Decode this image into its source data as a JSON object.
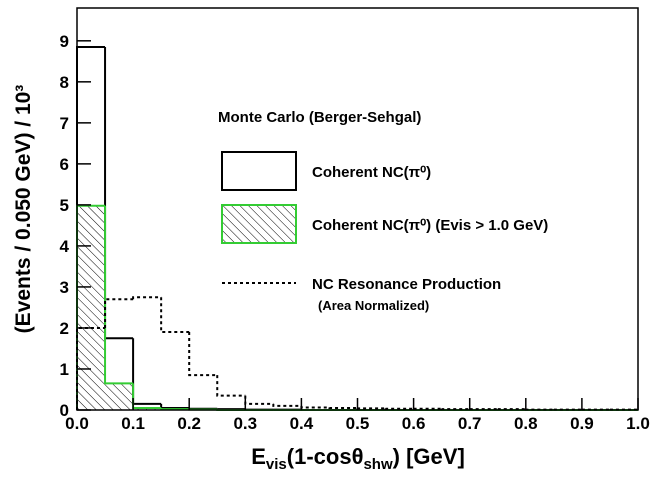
{
  "chart_data": {
    "type": "histogram",
    "ylabel": "(Events / 0.050 GeV) / 10³",
    "xlabel": [
      "E",
      "vis",
      "(1-cosθ",
      "shw",
      ") [GeV]"
    ],
    "header": "Monte Carlo (Berger-Sehgal)",
    "annotation": "(Area Normalized)",
    "bins": [
      0,
      0.05,
      0.1,
      0.15,
      0.2,
      0.25,
      0.3,
      0.35,
      0.4,
      0.45,
      0.5,
      0.55,
      0.6,
      0.65,
      0.7,
      0.75,
      0.8,
      0.85,
      0.9,
      0.95,
      1.0
    ],
    "series": [
      {
        "name": "Coherent NC(π⁰)",
        "color": "#000000",
        "style": "solid",
        "values": [
          8.85,
          1.75,
          0.15,
          0.05,
          0.03,
          0.02,
          0.01,
          0.01,
          0,
          0,
          0,
          0,
          0,
          0,
          0,
          0,
          0,
          0,
          0,
          0
        ]
      },
      {
        "name": "Coherent NC(π⁰) (Evis > 1.0 GeV)",
        "color": "#33cc33",
        "style": "solid",
        "fill": "hatch",
        "values": [
          4.98,
          0.65,
          0.05,
          0.02,
          0.01,
          0,
          0,
          0,
          0,
          0,
          0,
          0,
          0,
          0,
          0,
          0,
          0,
          0,
          0,
          0
        ]
      },
      {
        "name": "NC Resonance Production",
        "color": "#000000",
        "style": "dotted",
        "values": [
          2.0,
          2.7,
          2.75,
          1.9,
          0.85,
          0.35,
          0.15,
          0.1,
          0.06,
          0.05,
          0.04,
          0.03,
          0.03,
          0.02,
          0.02,
          0.02,
          0.01,
          0.01,
          0.01,
          0.01
        ]
      }
    ],
    "xlim": [
      0,
      1.0
    ],
    "ylim": [
      0,
      9.8
    ],
    "xticks": [
      {
        "value": 0,
        "label": "0.0"
      },
      0.1,
      0.2,
      0.3,
      0.4,
      0.5,
      0.6,
      0.7,
      0.8,
      0.9,
      {
        "value": 1.0,
        "label": "1.0"
      }
    ],
    "yticks": [
      0,
      1,
      2,
      3,
      4,
      5,
      6,
      7,
      8,
      9
    ]
  }
}
